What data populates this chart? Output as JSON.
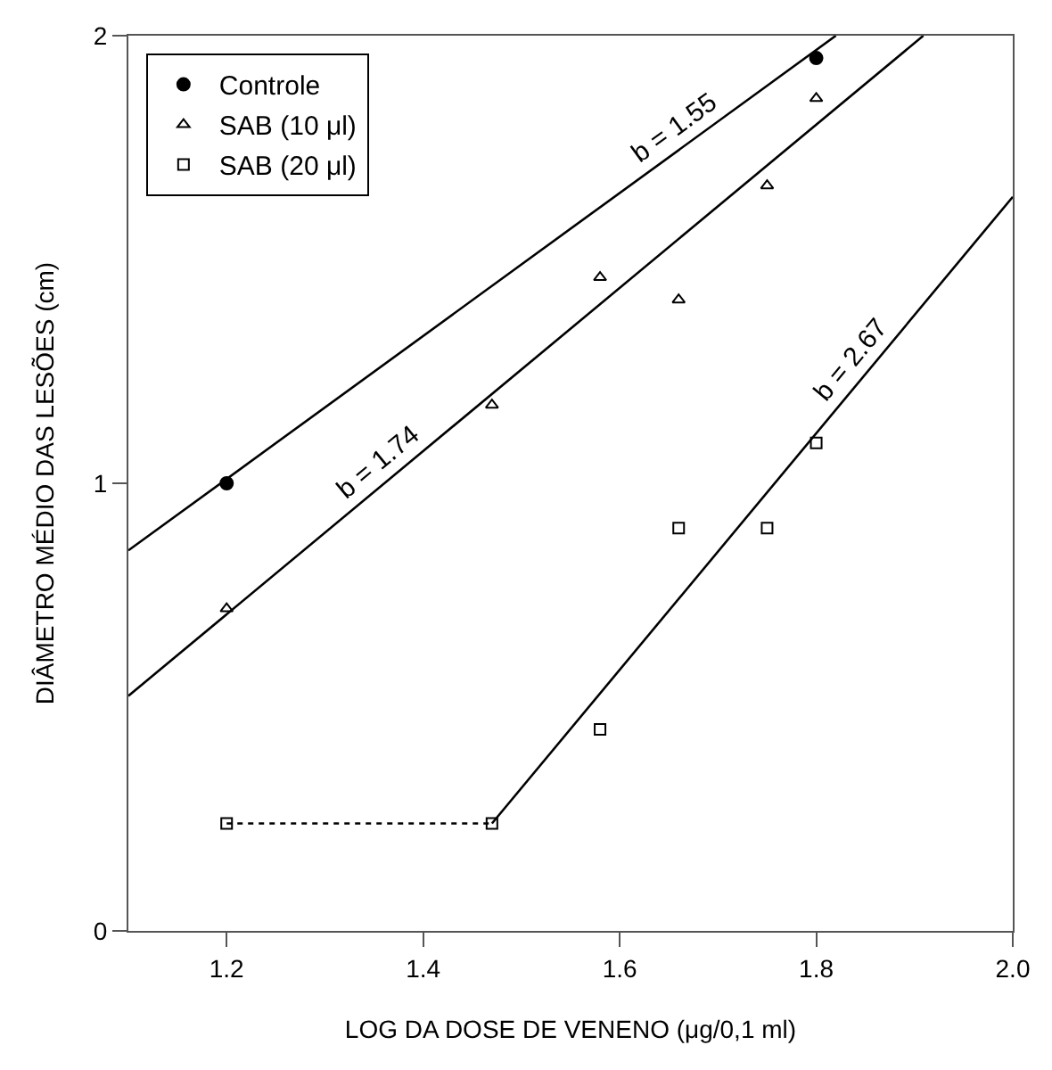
{
  "chart_data": {
    "type": "scatter",
    "xlabel": "LOG DA DOSE DE VENENO (μg/0,1 ml)",
    "ylabel": "DIÂMETRO MÉDIO DAS LESÕES (cm)",
    "xlim": [
      1.1,
      2.0
    ],
    "xticks": [
      1.2,
      1.4,
      1.6,
      1.8,
      {
        "value": 2.0,
        "label": "2.0"
      }
    ],
    "ylim": [
      0,
      2
    ],
    "yticks": [
      0,
      1,
      2
    ],
    "legend": "top left",
    "series": [
      {
        "name": "Controle",
        "color": "#000000",
        "marker": "circle",
        "x": [
          1.2,
          1.8
        ],
        "values": [
          1.0,
          1.95
        ]
      },
      {
        "name": "SAB (10 μl)",
        "color": "#000000",
        "marker": "triangle",
        "x": [
          1.2,
          1.47,
          1.58,
          1.66,
          1.75,
          1.8
        ],
        "values": [
          0.72,
          1.175,
          1.46,
          1.41,
          1.665,
          1.86
        ]
      },
      {
        "name": "SAB (20 μl)",
        "color": "#000000",
        "marker": "square",
        "x": [
          1.2,
          1.47,
          1.58,
          1.66,
          1.75,
          1.8
        ],
        "values": [
          0.24,
          0.24,
          0.45,
          0.9,
          0.9,
          1.09
        ]
      },
      {
        "type": "line",
        "color": "#000000",
        "line_style": "solid",
        "x": [
          1.1,
          1.82
        ],
        "values": [
          0.85,
          2.0
        ]
      },
      {
        "type": "line",
        "color": "#000000",
        "line_style": "solid",
        "x": [
          1.1,
          1.909
        ],
        "values": [
          0.525,
          2.0
        ]
      },
      {
        "type": "line",
        "color": "#000000",
        "line_style": "solid",
        "x": [
          1.47,
          2.0
        ],
        "values": [
          0.24,
          1.64
        ]
      },
      {
        "type": "line",
        "color": "#000000",
        "line_style": "dotted",
        "x": [
          1.2,
          1.47
        ],
        "values": [
          0.24,
          0.24
        ]
      }
    ],
    "annotations": [
      "b = 1.55",
      "b = 1.74",
      "b = 2.67"
    ]
  }
}
